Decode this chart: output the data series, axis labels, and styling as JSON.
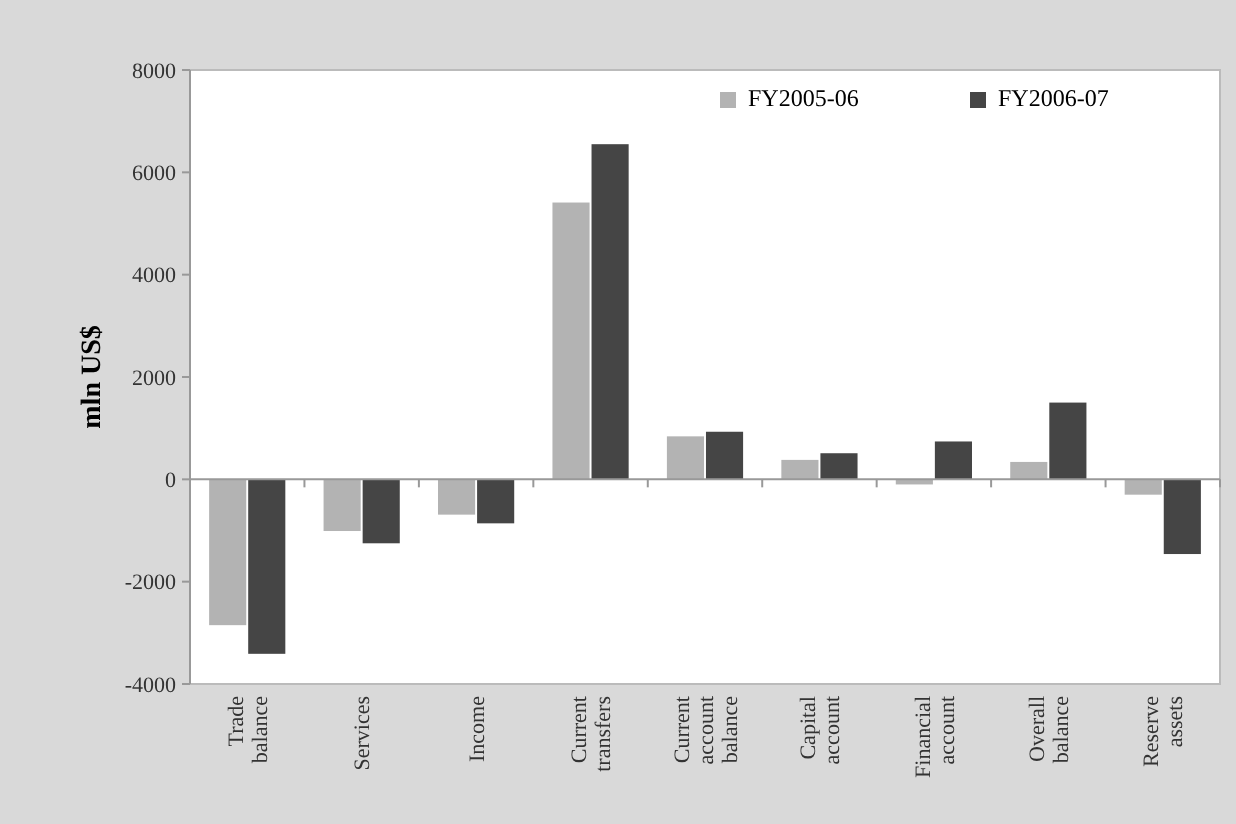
{
  "chart_data": {
    "type": "bar",
    "ylabel": "mln US$",
    "categories": [
      "Trade balance",
      "Services",
      "Income",
      "Current transfers",
      "Current account balance",
      "Capital account",
      "Financial account",
      "Overall balance",
      "Reserve assets"
    ],
    "series": [
      {
        "name": "FY2005-06",
        "color": "#b3b3b3",
        "values": [
          -2850,
          -1010,
          -690,
          5410,
          840,
          380,
          -100,
          340,
          -300
        ]
      },
      {
        "name": "FY2006-07",
        "color": "#454545",
        "values": [
          -3410,
          -1250,
          -860,
          6550,
          930,
          510,
          740,
          1500,
          -1460
        ]
      }
    ],
    "ylim": [
      -4000,
      8000
    ],
    "yticks": [
      -4000,
      -2000,
      0,
      2000,
      4000,
      6000,
      8000
    ],
    "legend": "top right"
  }
}
